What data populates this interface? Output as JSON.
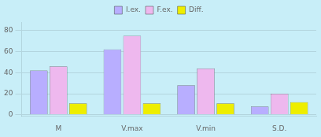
{
  "chart_data": {
    "type": "bar",
    "categories": [
      "M",
      "V.max",
      "V.min",
      "S.D."
    ],
    "series": [
      {
        "name": "I.ex.",
        "color": "#B8AEFF",
        "values": [
          42,
          62,
          28,
          8
        ]
      },
      {
        "name": "F.ex.",
        "color": "#EEB8EE",
        "values": [
          46,
          75,
          44,
          20
        ]
      },
      {
        "name": "Diff.",
        "color": "#EEEE00",
        "values": [
          11,
          11,
          11,
          12
        ]
      }
    ],
    "ylim": [
      -1,
      88
    ],
    "yticks": [
      0,
      20,
      40,
      60,
      80
    ],
    "grid": true,
    "legend": "top"
  }
}
